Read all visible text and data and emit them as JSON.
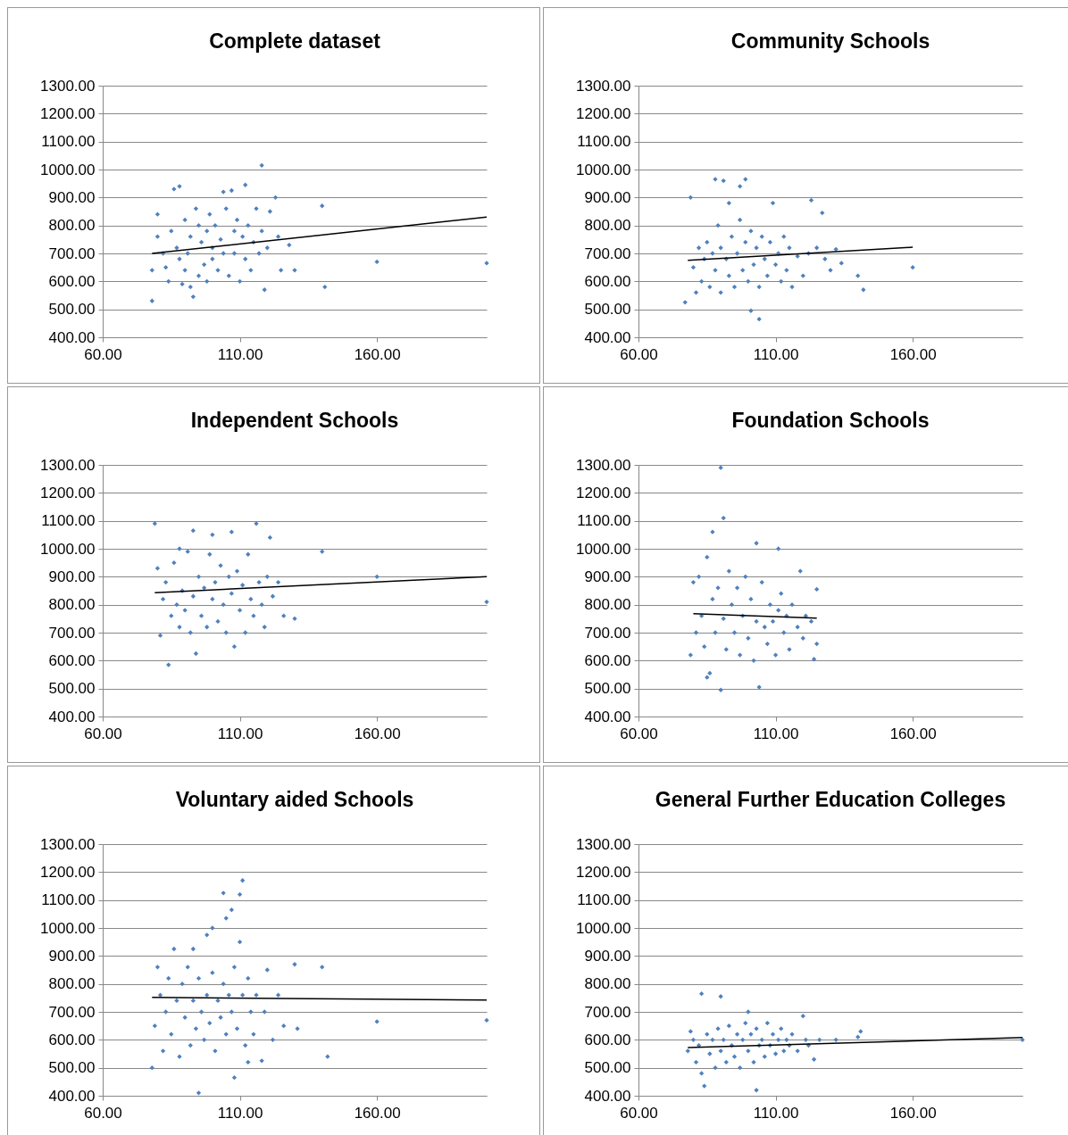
{
  "chart_data": [
    {
      "type": "scatter",
      "title": "Complete dataset",
      "xlim": [
        60,
        200
      ],
      "ylim": [
        400,
        1300
      ],
      "xticks": [
        {
          "value": 60,
          "label": "60.00"
        },
        {
          "value": 110,
          "label": "110.00"
        },
        {
          "value": 160,
          "label": "160.00"
        }
      ],
      "yticks": [
        {
          "value": 400,
          "label": "400.00"
        },
        {
          "value": 500,
          "label": "500.00"
        },
        {
          "value": 600,
          "label": "600.00"
        },
        {
          "value": 700,
          "label": "700.00"
        },
        {
          "value": 800,
          "label": "800.00"
        },
        {
          "value": 900,
          "label": "900.00"
        },
        {
          "value": 1000,
          "label": "1000.00"
        },
        {
          "value": 1100,
          "label": "1100.00"
        },
        {
          "value": 1200,
          "label": "1200.00"
        },
        {
          "value": 1300,
          "label": "1300.00"
        }
      ],
      "grid": "y",
      "marker": "diamond",
      "series": [
        {
          "color": "#4f81bd",
          "x": [
            78,
            78,
            80,
            80,
            82,
            83,
            84,
            85,
            86,
            87,
            88,
            88,
            89,
            90,
            90,
            91,
            92,
            92,
            93,
            94,
            95,
            95,
            96,
            97,
            98,
            98,
            99,
            100,
            100,
            101,
            102,
            103,
            104,
            104,
            105,
            106,
            107,
            108,
            108,
            109,
            110,
            111,
            112,
            112,
            113,
            114,
            115,
            116,
            117,
            118,
            118,
            119,
            120,
            121,
            123,
            124,
            125,
            128,
            130,
            140,
            141,
            160,
            200
          ],
          "values": [
            530,
            640,
            840,
            760,
            700,
            650,
            600,
            780,
            930,
            720,
            940,
            680,
            590,
            820,
            640,
            700,
            580,
            760,
            545,
            860,
            620,
            800,
            740,
            660,
            600,
            780,
            840,
            720,
            680,
            800,
            640,
            750,
            920,
            700,
            860,
            620,
            925,
            780,
            700,
            820,
            600,
            760,
            945,
            680,
            800,
            640,
            740,
            860,
            700,
            1015,
            780,
            570,
            720,
            850,
            900,
            760,
            640,
            730,
            640,
            870,
            580,
            670,
            665
          ]
        },
        {
          "type": "line",
          "marker": "none",
          "color": "#000000",
          "x": [
            78,
            200
          ],
          "values": [
            700,
            830
          ]
        }
      ]
    },
    {
      "type": "scatter",
      "title": "Community Schools",
      "xlim": [
        60,
        200
      ],
      "ylim": [
        400,
        1300
      ],
      "xticks": [
        {
          "value": 60,
          "label": "60.00"
        },
        {
          "value": 110,
          "label": "110.00"
        },
        {
          "value": 160,
          "label": "160.00"
        }
      ],
      "yticks": [
        {
          "value": 400,
          "label": "400.00"
        },
        {
          "value": 500,
          "label": "500.00"
        },
        {
          "value": 600,
          "label": "600.00"
        },
        {
          "value": 700,
          "label": "700.00"
        },
        {
          "value": 800,
          "label": "800.00"
        },
        {
          "value": 900,
          "label": "900.00"
        },
        {
          "value": 1000,
          "label": "1000.00"
        },
        {
          "value": 1100,
          "label": "1100.00"
        },
        {
          "value": 1200,
          "label": "1200.00"
        },
        {
          "value": 1300,
          "label": "1300.00"
        }
      ],
      "grid": "y",
      "marker": "diamond",
      "series": [
        {
          "color": "#4f81bd",
          "x": [
            77,
            79,
            80,
            81,
            82,
            83,
            84,
            85,
            86,
            87,
            88,
            88,
            89,
            90,
            90,
            91,
            92,
            93,
            93,
            94,
            95,
            96,
            97,
            97,
            98,
            99,
            99,
            100,
            101,
            101,
            102,
            103,
            104,
            104,
            105,
            106,
            107,
            108,
            109,
            110,
            111,
            112,
            113,
            114,
            115,
            116,
            118,
            120,
            122,
            123,
            125,
            127,
            128,
            130,
            132,
            134,
            140,
            142,
            160
          ],
          "values": [
            525,
            900,
            650,
            560,
            720,
            600,
            680,
            740,
            580,
            700,
            965,
            640,
            800,
            560,
            720,
            960,
            680,
            880,
            620,
            760,
            580,
            700,
            940,
            820,
            640,
            965,
            740,
            600,
            495,
            780,
            660,
            720,
            465,
            580,
            760,
            680,
            620,
            740,
            880,
            660,
            700,
            600,
            760,
            640,
            720,
            580,
            690,
            620,
            700,
            890,
            720,
            845,
            680,
            640,
            715,
            665,
            620,
            570,
            650
          ]
        },
        {
          "type": "line",
          "marker": "none",
          "color": "#000000",
          "x": [
            78,
            160
          ],
          "values": [
            675,
            722
          ]
        }
      ]
    },
    {
      "type": "scatter",
      "title": "Independent Schools",
      "xlim": [
        60,
        200
      ],
      "ylim": [
        400,
        1300
      ],
      "xticks": [
        {
          "value": 60,
          "label": "60.00"
        },
        {
          "value": 110,
          "label": "110.00"
        },
        {
          "value": 160,
          "label": "160.00"
        }
      ],
      "yticks": [
        {
          "value": 400,
          "label": "400.00"
        },
        {
          "value": 500,
          "label": "500.00"
        },
        {
          "value": 600,
          "label": "600.00"
        },
        {
          "value": 700,
          "label": "700.00"
        },
        {
          "value": 800,
          "label": "800.00"
        },
        {
          "value": 900,
          "label": "900.00"
        },
        {
          "value": 1000,
          "label": "1000.00"
        },
        {
          "value": 1100,
          "label": "1100.00"
        },
        {
          "value": 1200,
          "label": "1200.00"
        },
        {
          "value": 1300,
          "label": "1300.00"
        }
      ],
      "grid": "y",
      "marker": "diamond",
      "series": [
        {
          "color": "#4f81bd",
          "x": [
            79,
            80,
            81,
            82,
            83,
            84,
            85,
            86,
            87,
            88,
            88,
            89,
            90,
            91,
            92,
            93,
            93,
            94,
            95,
            96,
            97,
            98,
            99,
            100,
            100,
            101,
            102,
            103,
            104,
            105,
            106,
            107,
            107,
            108,
            109,
            110,
            111,
            112,
            113,
            114,
            115,
            116,
            117,
            118,
            119,
            120,
            121,
            122,
            124,
            126,
            130,
            140,
            160,
            200
          ],
          "values": [
            1090,
            930,
            690,
            820,
            880,
            585,
            760,
            950,
            800,
            1000,
            720,
            850,
            780,
            990,
            700,
            1065,
            830,
            625,
            900,
            760,
            860,
            720,
            980,
            1050,
            820,
            880,
            740,
            940,
            800,
            700,
            900,
            1060,
            840,
            650,
            920,
            780,
            870,
            700,
            980,
            820,
            760,
            1090,
            880,
            800,
            720,
            900,
            1040,
            830,
            880,
            760,
            750,
            990,
            900,
            810
          ]
        },
        {
          "type": "line",
          "marker": "none",
          "color": "#000000",
          "x": [
            79,
            200
          ],
          "values": [
            843,
            900
          ]
        }
      ]
    },
    {
      "type": "scatter",
      "title": "Foundation Schools",
      "xlim": [
        60,
        200
      ],
      "ylim": [
        400,
        1300
      ],
      "xticks": [
        {
          "value": 60,
          "label": "60.00"
        },
        {
          "value": 110,
          "label": "110.00"
        },
        {
          "value": 160,
          "label": "160.00"
        }
      ],
      "yticks": [
        {
          "value": 400,
          "label": "400.00"
        },
        {
          "value": 500,
          "label": "500.00"
        },
        {
          "value": 600,
          "label": "600.00"
        },
        {
          "value": 700,
          "label": "700.00"
        },
        {
          "value": 800,
          "label": "800.00"
        },
        {
          "value": 900,
          "label": "900.00"
        },
        {
          "value": 1000,
          "label": "1000.00"
        },
        {
          "value": 1100,
          "label": "1100.00"
        },
        {
          "value": 1200,
          "label": "1200.00"
        },
        {
          "value": 1300,
          "label": "1300.00"
        }
      ],
      "grid": "y",
      "marker": "diamond",
      "series": [
        {
          "color": "#4f81bd",
          "x": [
            79,
            80,
            81,
            82,
            83,
            84,
            85,
            85,
            86,
            87,
            87,
            88,
            89,
            90,
            90,
            91,
            91,
            92,
            93,
            94,
            95,
            96,
            97,
            98,
            99,
            100,
            101,
            102,
            103,
            103,
            104,
            105,
            106,
            107,
            108,
            109,
            110,
            111,
            111,
            112,
            113,
            114,
            115,
            116,
            118,
            119,
            120,
            121,
            123,
            124,
            125,
            125
          ],
          "values": [
            620,
            880,
            700,
            900,
            760,
            650,
            540,
            970,
            555,
            1060,
            820,
            700,
            860,
            1290,
            495,
            1110,
            750,
            640,
            920,
            800,
            700,
            860,
            620,
            760,
            900,
            680,
            820,
            600,
            1020,
            740,
            505,
            880,
            720,
            660,
            800,
            740,
            620,
            1000,
            780,
            840,
            700,
            760,
            640,
            800,
            720,
            920,
            680,
            760,
            740,
            605,
            855,
            660
          ]
        },
        {
          "type": "line",
          "marker": "none",
          "color": "#000000",
          "x": [
            80,
            125
          ],
          "values": [
            768,
            752
          ]
        }
      ]
    },
    {
      "type": "scatter",
      "title": "Voluntary aided Schools",
      "xlim": [
        60,
        200
      ],
      "ylim": [
        400,
        1300
      ],
      "xticks": [
        {
          "value": 60,
          "label": "60.00"
        },
        {
          "value": 110,
          "label": "110.00"
        },
        {
          "value": 160,
          "label": "160.00"
        }
      ],
      "yticks": [
        {
          "value": 400,
          "label": "400.00"
        },
        {
          "value": 500,
          "label": "500.00"
        },
        {
          "value": 600,
          "label": "600.00"
        },
        {
          "value": 700,
          "label": "700.00"
        },
        {
          "value": 800,
          "label": "800.00"
        },
        {
          "value": 900,
          "label": "900.00"
        },
        {
          "value": 1000,
          "label": "1000.00"
        },
        {
          "value": 1100,
          "label": "1100.00"
        },
        {
          "value": 1200,
          "label": "1200.00"
        },
        {
          "value": 1300,
          "label": "1300.00"
        }
      ],
      "grid": "y",
      "marker": "diamond",
      "series": [
        {
          "color": "#4f81bd",
          "x": [
            78,
            79,
            80,
            81,
            82,
            83,
            84,
            85,
            86,
            87,
            88,
            89,
            90,
            91,
            92,
            93,
            93,
            94,
            95,
            95,
            96,
            97,
            98,
            98,
            99,
            100,
            100,
            101,
            102,
            103,
            104,
            104,
            105,
            105,
            106,
            107,
            107,
            108,
            108,
            109,
            110,
            110,
            111,
            111,
            112,
            113,
            113,
            114,
            115,
            116,
            118,
            119,
            120,
            122,
            124,
            126,
            130,
            131,
            140,
            142,
            160,
            200
          ],
          "values": [
            500,
            650,
            860,
            760,
            560,
            700,
            820,
            620,
            925,
            740,
            540,
            800,
            680,
            860,
            580,
            925,
            740,
            640,
            410,
            820,
            700,
            600,
            975,
            760,
            660,
            1000,
            840,
            560,
            740,
            680,
            1125,
            800,
            1035,
            620,
            760,
            1065,
            700,
            465,
            860,
            640,
            1120,
            950,
            1170,
            760,
            580,
            520,
            820,
            700,
            620,
            760,
            525,
            700,
            850,
            600,
            760,
            650,
            870,
            640,
            860,
            540,
            665,
            670
          ]
        },
        {
          "type": "line",
          "marker": "none",
          "color": "#000000",
          "x": [
            78,
            200
          ],
          "values": [
            752,
            742
          ]
        }
      ]
    },
    {
      "type": "scatter",
      "title": "General Further Education Colleges",
      "xlim": [
        60,
        200
      ],
      "ylim": [
        400,
        1300
      ],
      "xticks": [
        {
          "value": 60,
          "label": "60.00"
        },
        {
          "value": 110,
          "label": "110.00"
        },
        {
          "value": 160,
          "label": "160.00"
        }
      ],
      "yticks": [
        {
          "value": 400,
          "label": "400.00"
        },
        {
          "value": 500,
          "label": "500.00"
        },
        {
          "value": 600,
          "label": "600.00"
        },
        {
          "value": 700,
          "label": "700.00"
        },
        {
          "value": 800,
          "label": "800.00"
        },
        {
          "value": 900,
          "label": "900.00"
        },
        {
          "value": 1000,
          "label": "1000.00"
        },
        {
          "value": 1100,
          "label": "1100.00"
        },
        {
          "value": 1200,
          "label": "1200.00"
        },
        {
          "value": 1300,
          "label": "1300.00"
        }
      ],
      "grid": "y",
      "marker": "diamond",
      "series": [
        {
          "color": "#4f81bd",
          "x": [
            78,
            79,
            80,
            81,
            82,
            83,
            83,
            84,
            85,
            86,
            87,
            88,
            89,
            90,
            90,
            91,
            92,
            93,
            94,
            95,
            96,
            97,
            98,
            99,
            100,
            100,
            101,
            102,
            103,
            103,
            104,
            105,
            106,
            107,
            108,
            109,
            110,
            111,
            112,
            113,
            114,
            115,
            116,
            118,
            120,
            121,
            122,
            124,
            126,
            132,
            140,
            141,
            200
          ],
          "values": [
            560,
            630,
            600,
            520,
            580,
            765,
            480,
            435,
            620,
            550,
            600,
            500,
            640,
            755,
            560,
            600,
            520,
            650,
            580,
            540,
            620,
            500,
            600,
            660,
            700,
            560,
            620,
            520,
            420,
            640,
            580,
            600,
            540,
            660,
            580,
            620,
            550,
            600,
            640,
            560,
            600,
            580,
            620,
            560,
            685,
            600,
            580,
            530,
            600,
            600,
            610,
            630,
            600
          ]
        },
        {
          "type": "line",
          "marker": "none",
          "color": "#000000",
          "x": [
            78,
            200
          ],
          "values": [
            572,
            608
          ]
        }
      ]
    }
  ]
}
